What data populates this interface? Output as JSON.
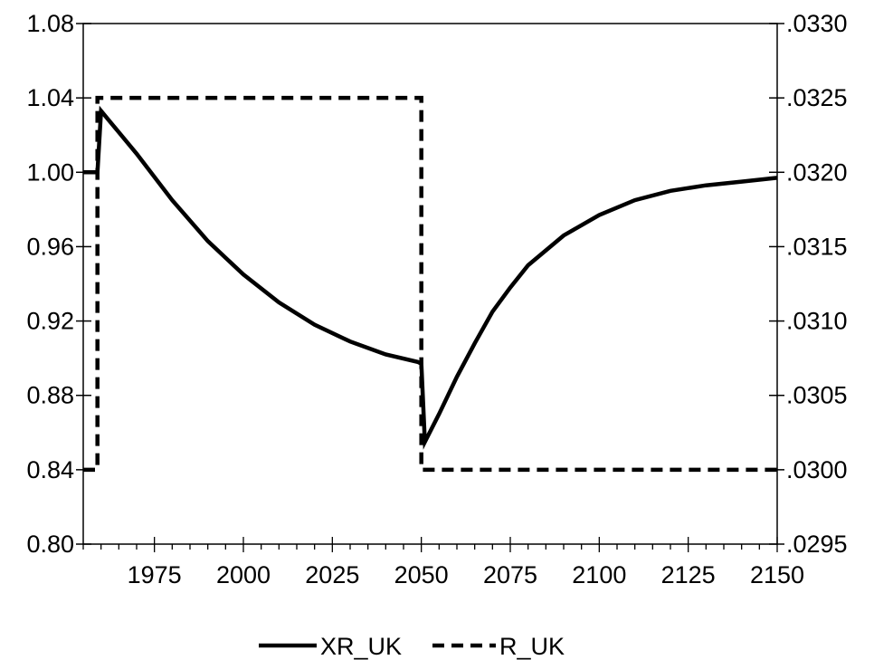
{
  "chart_data": {
    "type": "line",
    "title": "",
    "xlabel": "",
    "ylabel_left": "",
    "ylabel_right": "",
    "grid": false,
    "legend_position": "bottom",
    "x_range": [
      1955,
      2150
    ],
    "x_ticks": [
      "1975",
      "2000",
      "2025",
      "2050",
      "2075",
      "2100",
      "2125",
      "2150"
    ],
    "y_left_range": [
      0.8,
      1.08
    ],
    "y_left_ticks": [
      "0.80",
      "0.84",
      "0.88",
      "0.92",
      "0.96",
      "1.00",
      "1.04",
      "1.08"
    ],
    "y_right_range": [
      0.0295,
      0.033
    ],
    "y_right_ticks": [
      ".0295",
      ".0300",
      ".0305",
      ".0310",
      ".0315",
      ".0320",
      ".0325",
      ".0330"
    ],
    "series": [
      {
        "name": "XR_UK",
        "axis": "left",
        "style": "solid",
        "color": "#000000",
        "x": [
          1955,
          1959,
          1960,
          1970,
          1980,
          1990,
          2000,
          2010,
          2020,
          2030,
          2040,
          2049,
          2050,
          2051,
          2055,
          2060,
          2065,
          2070,
          2075,
          2080,
          2090,
          2100,
          2110,
          2120,
          2130,
          2140,
          2150
        ],
        "y": [
          1.0,
          1.0,
          1.033,
          1.01,
          0.985,
          0.963,
          0.945,
          0.93,
          0.918,
          0.909,
          0.902,
          0.898,
          0.897,
          0.855,
          0.87,
          0.89,
          0.908,
          0.925,
          0.938,
          0.95,
          0.966,
          0.977,
          0.985,
          0.99,
          0.993,
          0.995,
          0.997
        ]
      },
      {
        "name": "R_UK",
        "axis": "right",
        "style": "dashed",
        "color": "#000000",
        "x": [
          1955,
          1959,
          1959,
          2050,
          2050,
          2150
        ],
        "y": [
          0.03,
          0.03,
          0.0325,
          0.0325,
          0.03,
          0.03
        ]
      }
    ]
  }
}
